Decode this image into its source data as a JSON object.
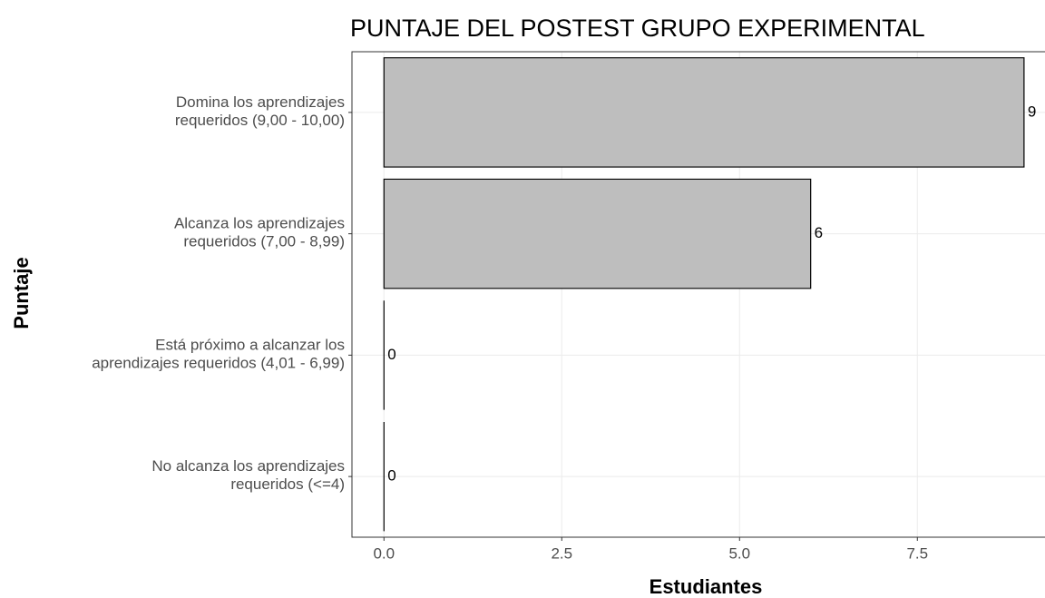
{
  "chart_data": {
    "type": "barh",
    "title": "PUNTAJE DEL POSTEST GRUPO EXPERIMENTAL",
    "x_label": "Estudiantes",
    "y_label": "Puntaje",
    "categories": [
      "Domina los aprendizajes\nrequeridos (9,00 - 10,00)",
      "Alcanza los aprendizajes\nrequeridos (7,00 - 8,99)",
      "Está próximo a alcanzar los\naprendizajes requeridos (4,01 - 6,99)",
      "No alcanza los aprendizajes\nrequeridos (<=4)"
    ],
    "values": [
      9,
      6,
      0,
      0
    ],
    "color": "#bebebe",
    "xlim": [
      -0.45,
      9.45
    ],
    "xticks": [
      {
        "value": 0,
        "label": "0.0"
      },
      2.5,
      {
        "value": 5,
        "label": "5.0"
      },
      7.5
    ],
    "grid": true
  }
}
